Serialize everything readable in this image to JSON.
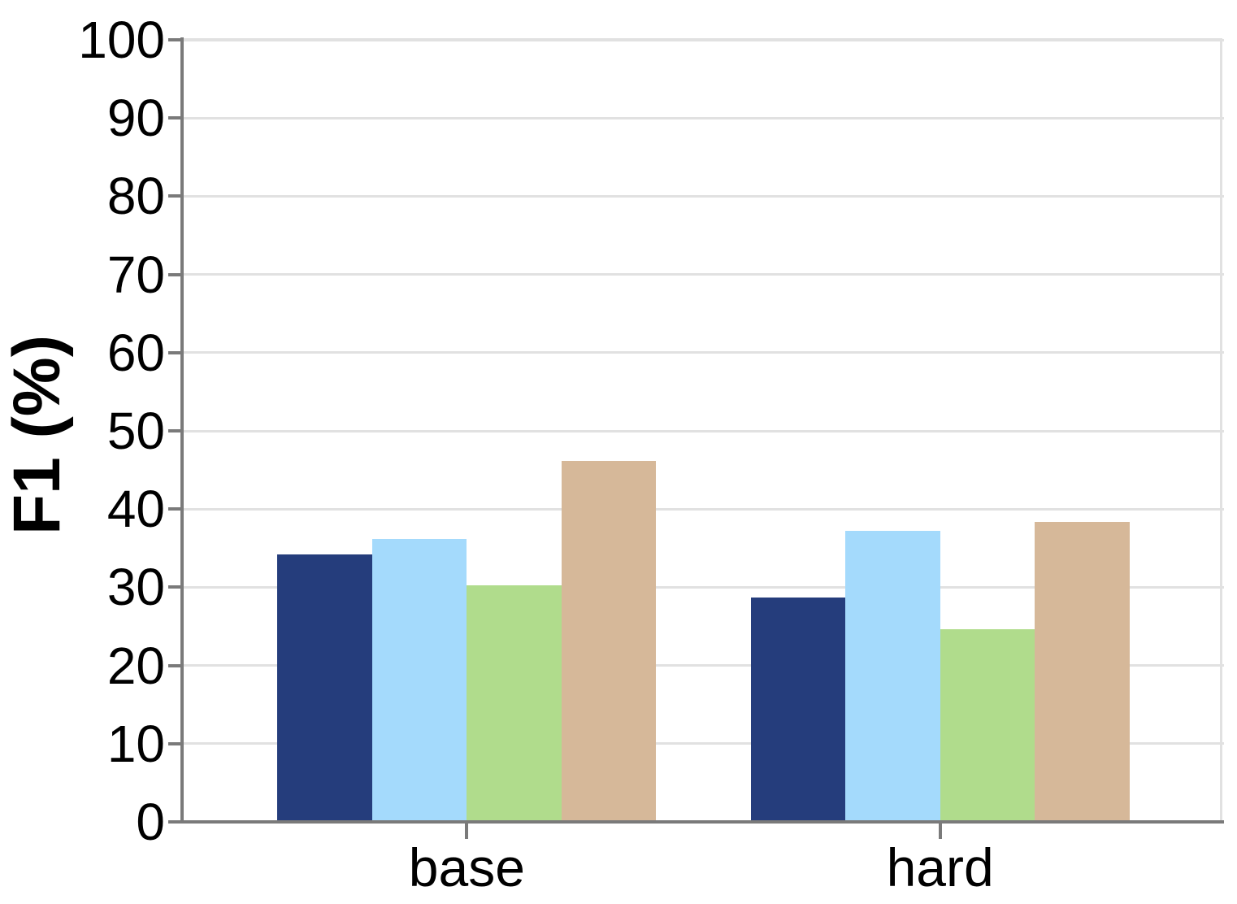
{
  "chart_data": {
    "type": "bar",
    "title": "",
    "xlabel": "",
    "ylabel": "F1 (%)",
    "categories": [
      "base",
      "hard"
    ],
    "series": [
      {
        "name": "navy-bars",
        "color": "#253d7c",
        "values": [
          34.2,
          28.7
        ]
      },
      {
        "name": "light-blue-bars",
        "color": "#a4dafc",
        "values": [
          36.2,
          37.2
        ]
      },
      {
        "name": "green-bars",
        "color": "#b0dc8c",
        "values": [
          30.2,
          24.6
        ]
      },
      {
        "name": "tan-bars",
        "color": "#d6b899",
        "values": [
          46.2,
          38.4
        ]
      }
    ],
    "ylim": [
      0,
      100
    ],
    "yticks": [
      0,
      10,
      20,
      30,
      40,
      50,
      60,
      70,
      80,
      90,
      100
    ],
    "grid": true,
    "legend": false,
    "axis_colors": {
      "spine": "#7a7a7a",
      "gridline": "#e1e1e1",
      "text": "#000000",
      "background": "#ffffff"
    }
  }
}
